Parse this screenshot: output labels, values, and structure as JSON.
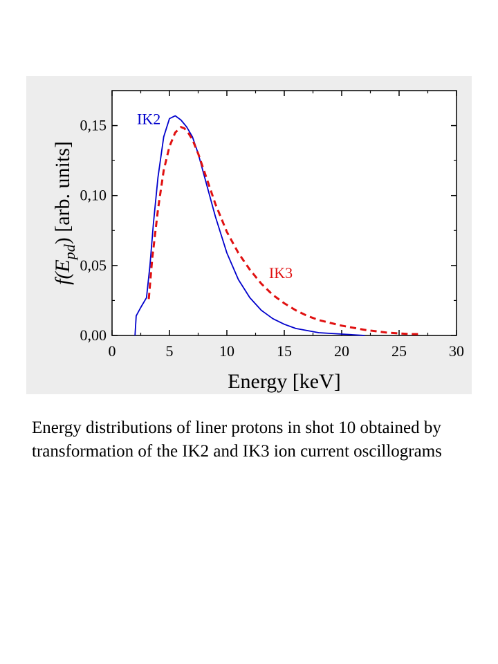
{
  "colors": {
    "background": "#ffffff",
    "figure_panel": "#ededed",
    "ik2": "#0000cc",
    "ik3": "#e01010",
    "axis": "#000000"
  },
  "chart_data": {
    "type": "line",
    "xlabel": "Energy [keV]",
    "ylabel": {
      "prefix": "f(E",
      "subscript": "pd",
      "suffix": ") [arb. units]"
    },
    "xlim": [
      0,
      30
    ],
    "ylim": [
      0,
      0.175
    ],
    "x_ticks": [
      0,
      5,
      10,
      15,
      20,
      25,
      30
    ],
    "x_tick_labels": [
      "0",
      "5",
      "10",
      "15",
      "20",
      "25",
      "30"
    ],
    "y_ticks": [
      0,
      0.05,
      0.1,
      0.15
    ],
    "y_tick_labels": [
      "0,00",
      "0,05",
      "0,10",
      "0,15"
    ],
    "grid": false,
    "legend": "none",
    "series": [
      {
        "name": "IK2",
        "style": "solid",
        "color": "#0000cc",
        "x": [
          2.0,
          2.1,
          2.5,
          3.0,
          3.3,
          3.6,
          4.0,
          4.5,
          5.0,
          5.5,
          6.0,
          6.5,
          7.0,
          7.5,
          8.0,
          8.5,
          9.0,
          9.5,
          10,
          11,
          12,
          13,
          14,
          15,
          16,
          18,
          20,
          22
        ],
        "y": [
          0.0,
          0.014,
          0.02,
          0.027,
          0.05,
          0.08,
          0.113,
          0.142,
          0.155,
          0.157,
          0.154,
          0.149,
          0.142,
          0.13,
          0.115,
          0.1,
          0.085,
          0.072,
          0.059,
          0.04,
          0.027,
          0.018,
          0.012,
          0.008,
          0.005,
          0.002,
          0.001,
          0.0
        ]
      },
      {
        "name": "IK3",
        "style": "dashed",
        "color": "#e01010",
        "x": [
          3.2,
          3.5,
          4.0,
          4.5,
          5.0,
          5.5,
          6.0,
          6.3,
          6.7,
          7.0,
          7.5,
          8.0,
          9.0,
          10,
          11,
          12,
          13,
          14,
          15,
          16,
          17,
          18,
          19,
          20,
          22,
          24,
          26,
          27
        ],
        "y": [
          0.026,
          0.055,
          0.09,
          0.118,
          0.135,
          0.145,
          0.149,
          0.148,
          0.144,
          0.14,
          0.13,
          0.118,
          0.094,
          0.074,
          0.059,
          0.047,
          0.037,
          0.029,
          0.023,
          0.018,
          0.014,
          0.011,
          0.009,
          0.007,
          0.004,
          0.002,
          0.001,
          0.001
        ]
      }
    ],
    "annotations": [
      {
        "text": "IK2",
        "x": 3.2,
        "y": 0.151,
        "series": "IK2"
      },
      {
        "text": "IK3",
        "x": 14.7,
        "y": 0.041,
        "series": "IK3"
      }
    ]
  },
  "caption": "Energy distributions of liner protons in shot 10 obtained by transformation of the IK2 and IK3 ion current oscillograms"
}
